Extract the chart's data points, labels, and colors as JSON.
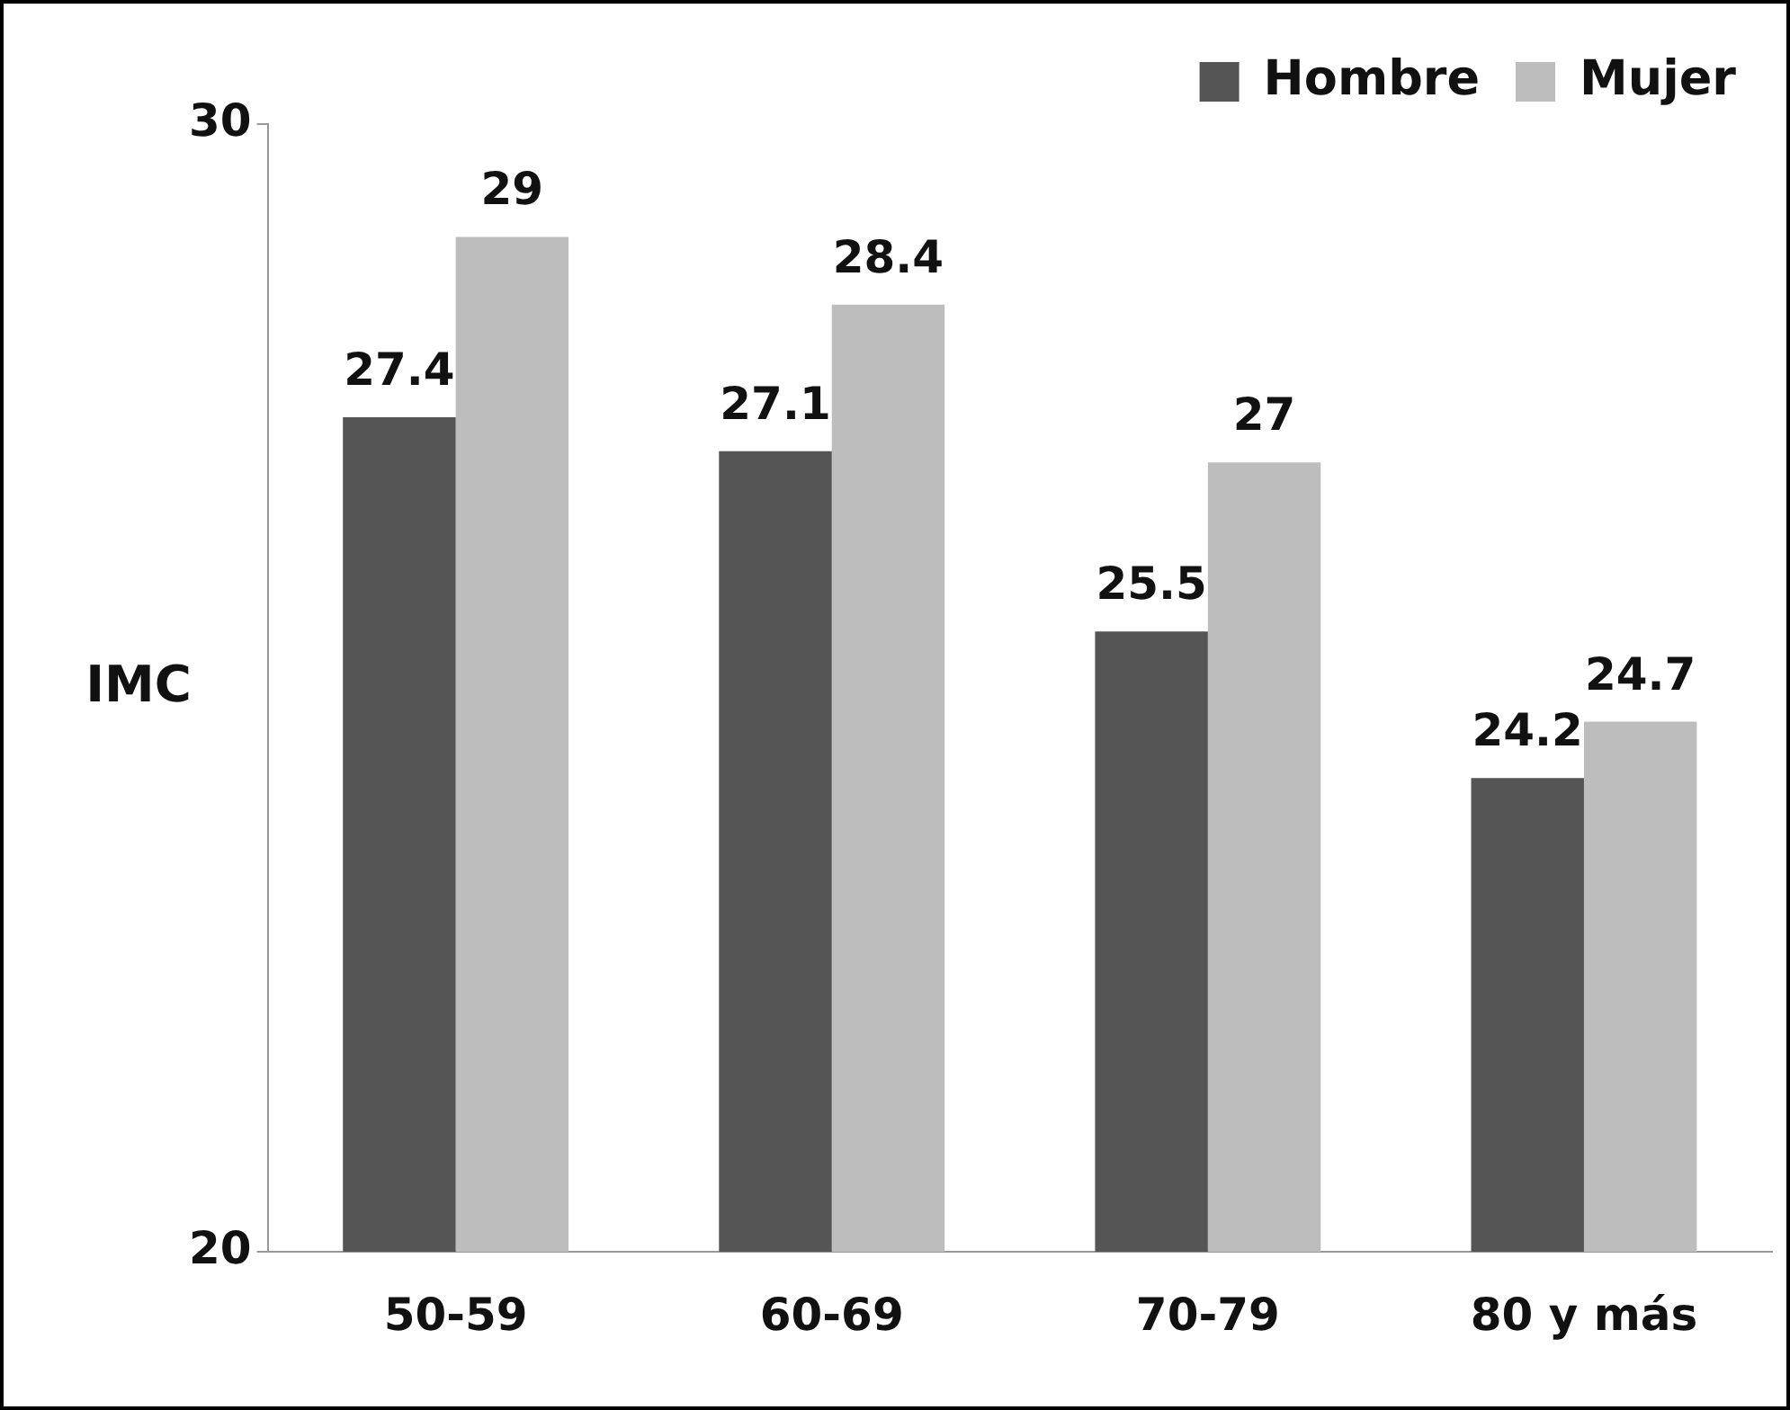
{
  "chart_data": {
    "type": "bar",
    "ylabel": "IMC",
    "categories": [
      "50-59",
      "60-69",
      "70-79",
      "80 y más"
    ],
    "series": [
      {
        "name": "Hombre",
        "color": "#555555",
        "values": [
          27.4,
          27.1,
          25.5,
          24.2
        ]
      },
      {
        "name": "Mujer",
        "color": "#bdbdbd",
        "values": [
          29,
          28.4,
          27,
          24.7
        ]
      }
    ],
    "ylim": [
      20,
      30
    ],
    "yticks": [
      20,
      30
    ],
    "grid": false,
    "legend": "top right",
    "data_labels": true
  }
}
